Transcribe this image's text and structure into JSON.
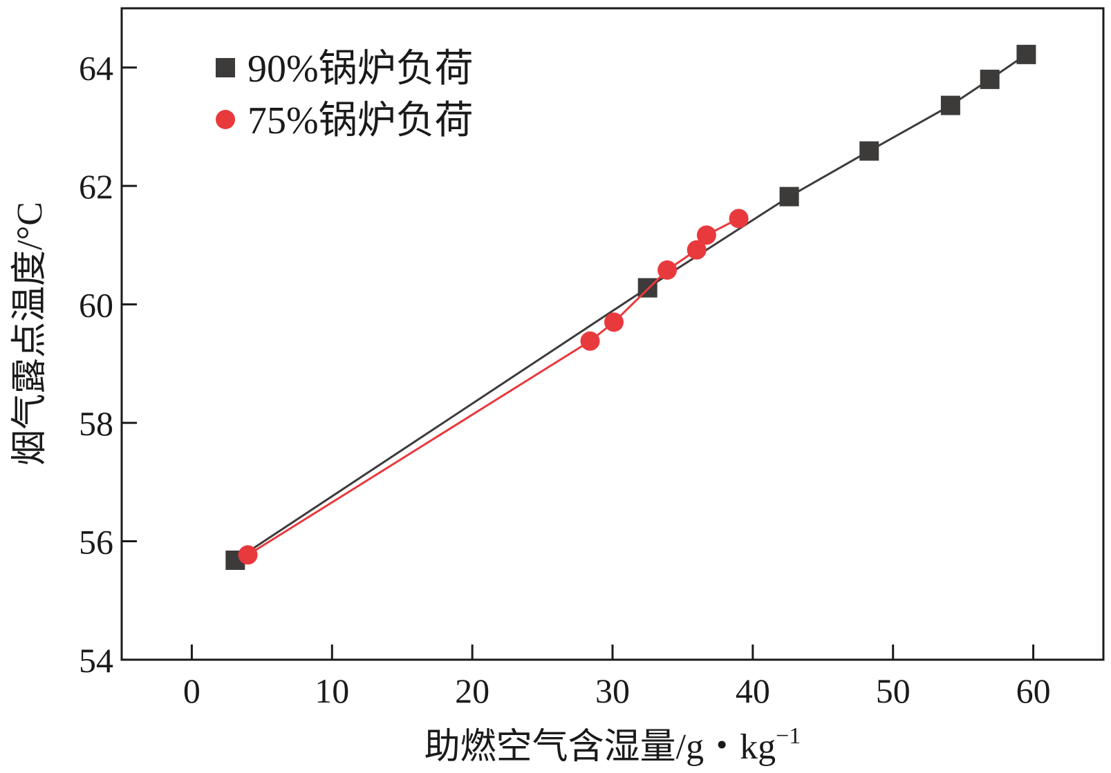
{
  "chart_data": {
    "type": "line",
    "title": "",
    "xlabel": "助燃空气含湿量/g・kg",
    "xlabel_sup": "−1",
    "ylabel": "烟气露点温度/°C",
    "xlim": [
      -5,
      65
    ],
    "ylim": [
      54,
      65
    ],
    "xticks": [
      0,
      10,
      20,
      30,
      40,
      50,
      60
    ],
    "yticks": [
      54,
      56,
      58,
      60,
      62,
      64
    ],
    "grid": false,
    "legend_position": "top-left",
    "series": [
      {
        "name": "90%锅炉负荷",
        "marker": "square",
        "color": "#3d3a3a",
        "x": [
          3.1,
          32.5,
          42.6,
          48.3,
          54.1,
          56.9,
          59.5
        ],
        "y": [
          55.68,
          60.28,
          61.82,
          62.59,
          63.36,
          63.8,
          64.22
        ]
      },
      {
        "name": "75%锅炉负荷",
        "marker": "circle",
        "color": "#e8393d",
        "x": [
          4.0,
          28.4,
          30.1,
          33.9,
          36.0,
          36.7,
          39.0
        ],
        "y": [
          55.77,
          59.38,
          59.7,
          60.58,
          60.92,
          61.17,
          61.45
        ]
      }
    ]
  }
}
